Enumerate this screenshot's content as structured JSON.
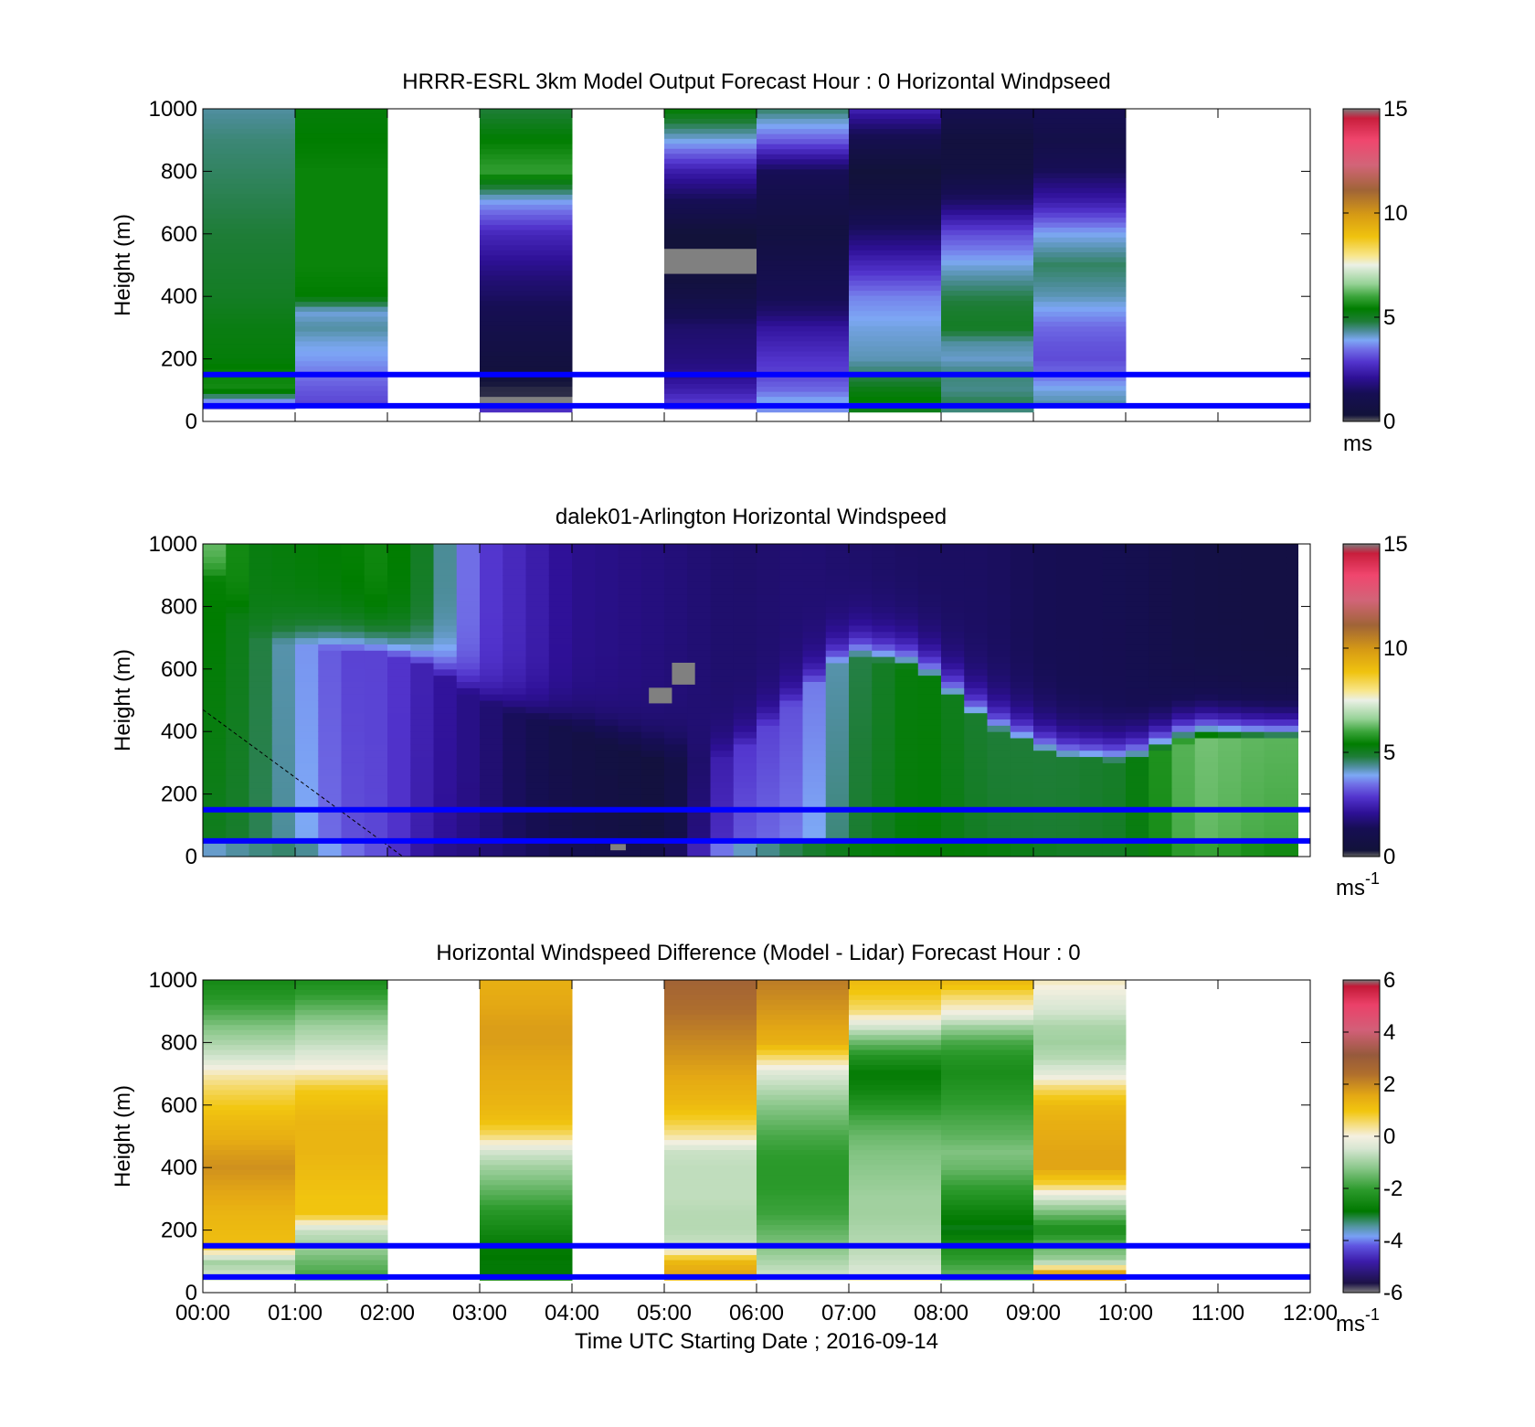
{
  "figure": {
    "xlabel": "Time UTC  Starting Date ; 2016-09-14",
    "x_tick_labels": [
      "00:00",
      "01:00",
      "02:00",
      "03:00",
      "04:00",
      "05:00",
      "06:00",
      "07:00",
      "08:00",
      "09:00",
      "10:00",
      "11:00",
      "12:00"
    ]
  },
  "chart_data": [
    {
      "type": "heatmap",
      "title": "HRRR-ESRL 3km Model Output   Forecast Hour : 0 Horizontal Windpseed",
      "ylabel": "Height (m)",
      "xlim": [
        "00:00",
        "12:00"
      ],
      "ylim": [
        0,
        1000
      ],
      "y_ticks": [
        0,
        200,
        400,
        600,
        800,
        1000
      ],
      "colorbar": {
        "min": 0,
        "max": 15,
        "ticks": [
          0,
          5,
          10,
          15
        ],
        "unit_label": "ms",
        "unit_sup": "",
        "colormap": "speed"
      },
      "reference_lines_m": [
        50,
        150
      ],
      "reference_line_color": "#0000ff",
      "columns": [
        {
          "start": "00:00",
          "end": "01:00",
          "heights": [
            1000,
            900,
            800,
            700,
            600,
            500,
            400,
            300,
            200,
            150,
            100,
            60,
            40
          ],
          "values": [
            4.3,
            4.5,
            4.6,
            4.7,
            4.8,
            4.9,
            5.0,
            5.2,
            5.3,
            5.5,
            5.6,
            3.5,
            3.0
          ]
        },
        {
          "start": "01:00",
          "end": "02:00",
          "heights": [
            1000,
            900,
            800,
            700,
            600,
            500,
            400,
            350,
            300,
            250,
            200,
            150,
            100,
            50
          ],
          "values": [
            5.3,
            5.4,
            5.5,
            5.5,
            5.5,
            5.5,
            5.4,
            4.0,
            4.3,
            4.0,
            3.8,
            3.5,
            3.2,
            3.0
          ]
        },
        {
          "start": "02:00",
          "end": "03:00",
          "heights": [],
          "values": []
        },
        {
          "start": "03:00",
          "end": "04:00",
          "heights": [
            1000,
            900,
            800,
            700,
            600,
            500,
            450,
            400,
            300,
            250,
            200,
            150,
            100,
            60,
            30
          ],
          "values": [
            4.8,
            5.4,
            5.9,
            3.8,
            2.6,
            2.0,
            1.7,
            1.5,
            1.0,
            0.8,
            0.6,
            0.4,
            0.2,
            -1,
            2.7
          ]
        },
        {
          "start": "04:00",
          "end": "05:00",
          "heights": [],
          "values": []
        },
        {
          "start": "05:00",
          "end": "06:00",
          "heights": [
            1000,
            900,
            800,
            700,
            600,
            500,
            450,
            400,
            350,
            300,
            200,
            150,
            100,
            70,
            40
          ],
          "values": [
            5.4,
            4.0,
            2.4,
            1.3,
            0.3,
            -1,
            0.5,
            0.8,
            1.2,
            1.6,
            1.8,
            2.0,
            2.4,
            2.8,
            3.1
          ]
        },
        {
          "start": "06:00",
          "end": "07:00",
          "heights": [
            1000,
            900,
            800,
            700,
            600,
            500,
            400,
            350,
            300,
            250,
            200,
            150,
            100,
            60,
            30
          ],
          "values": [
            4.6,
            3.3,
            1.4,
            0.9,
            0.6,
            1.0,
            1.3,
            1.6,
            2.2,
            2.5,
            2.8,
            3.0,
            3.4,
            4.0,
            3.6
          ]
        },
        {
          "start": "07:00",
          "end": "08:00",
          "heights": [
            1000,
            900,
            800,
            700,
            600,
            500,
            450,
            400,
            300,
            250,
            200,
            150,
            100,
            50,
            30
          ],
          "values": [
            2.5,
            1.1,
            0.3,
            0.7,
            1.6,
            2.6,
            3.1,
            3.6,
            4.0,
            4.1,
            4.2,
            4.6,
            5.2,
            5.5,
            4.9
          ]
        },
        {
          "start": "08:00",
          "end": "09:00",
          "heights": [
            1000,
            900,
            800,
            700,
            600,
            500,
            400,
            350,
            300,
            250,
            200,
            150,
            100,
            60,
            30
          ],
          "values": [
            1.2,
            0.5,
            0.6,
            1.6,
            3.1,
            4.0,
            4.7,
            4.9,
            5.0,
            4.3,
            4.1,
            4.5,
            4.4,
            4.7,
            4.4
          ]
        },
        {
          "start": "09:00",
          "end": "10:00",
          "heights": [
            1000,
            900,
            800,
            700,
            600,
            500,
            400,
            350,
            300,
            250,
            200,
            150,
            100,
            50
          ],
          "values": [
            1.3,
            0.9,
            1.4,
            2.4,
            3.9,
            4.6,
            4.2,
            3.8,
            3.4,
            3.2,
            3.1,
            3.4,
            4.0,
            4.3
          ]
        },
        {
          "start": "10:00",
          "end": "11:00",
          "heights": [],
          "values": []
        },
        {
          "start": "11:00",
          "end": "12:00",
          "heights": [],
          "values": []
        }
      ]
    },
    {
      "type": "heatmap",
      "title": "dalek01-Arlington  Horizontal Windspeed",
      "ylabel": "Height (m)",
      "xlim": [
        "00:00",
        "12:00"
      ],
      "ylim": [
        0,
        1000
      ],
      "y_ticks": [
        0,
        200,
        400,
        600,
        800,
        1000
      ],
      "colorbar": {
        "min": 0,
        "max": 15,
        "ticks": [
          0,
          5,
          10,
          15
        ],
        "unit_label": "ms",
        "unit_sup": "-1",
        "colormap": "speed"
      },
      "reference_lines_m": [
        50,
        150
      ],
      "reference_line_color": "#0000ff",
      "column_width_hours": 0.25,
      "data_end": "11:52",
      "profiles": [
        {
          "t": 0.0,
          "mid": 5.6,
          "top": 6.8,
          "bottom": 4.0,
          "layer_top": 950
        },
        {
          "t": 0.5,
          "mid": 5.0,
          "top": 5.2,
          "bottom": 4.4,
          "layer_top": 700
        },
        {
          "t": 1.0,
          "mid": 4.0,
          "top": 5.3,
          "bottom": 4.6,
          "layer_top": 680
        },
        {
          "t": 1.5,
          "mid": 3.0,
          "top": 5.4,
          "bottom": 3.6,
          "layer_top": 660
        },
        {
          "t": 2.0,
          "mid": 3.0,
          "top": 5.6,
          "bottom": 3.0,
          "layer_top": 650
        },
        {
          "t": 2.5,
          "mid": 2.3,
          "top": 4.8,
          "bottom": 2.0,
          "layer_top": 600
        },
        {
          "t": 3.0,
          "mid": 1.8,
          "top": 3.0,
          "bottom": 1.8,
          "layer_top": 500
        },
        {
          "t": 4.0,
          "mid": 0.8,
          "top": 2.0,
          "bottom": 1.2,
          "layer_top": 400
        },
        {
          "t": 5.0,
          "mid": 0.4,
          "top": 1.8,
          "bottom": 1.0,
          "layer_top": 300
        },
        {
          "t": 5.75,
          "mid": 2.8,
          "top": 1.6,
          "bottom": 4.0,
          "layer_top": 320
        },
        {
          "t": 6.5,
          "mid": 3.2,
          "top": 1.7,
          "bottom": 4.8,
          "layer_top": 520
        },
        {
          "t": 7.0,
          "mid": 4.6,
          "top": 1.6,
          "bottom": 5.2,
          "layer_top": 650
        },
        {
          "t": 7.75,
          "mid": 5.4,
          "top": 1.5,
          "bottom": 5.4,
          "layer_top": 600
        },
        {
          "t": 8.5,
          "mid": 4.8,
          "top": 1.5,
          "bottom": 5.3,
          "layer_top": 420
        },
        {
          "t": 9.25,
          "mid": 4.8,
          "top": 1.3,
          "bottom": 5.0,
          "layer_top": 320
        },
        {
          "t": 10.0,
          "mid": 5.0,
          "top": 1.2,
          "bottom": 5.0,
          "layer_top": 300
        },
        {
          "t": 10.75,
          "mid": 6.4,
          "top": 0.8,
          "bottom": 6.0,
          "layer_top": 380
        },
        {
          "t": 11.5,
          "mid": 6.2,
          "top": 0.7,
          "bottom": 5.6,
          "layer_top": 370
        }
      ],
      "missing_patches": [
        {
          "start": "05:05",
          "end": "05:20",
          "bottom": 550,
          "top": 620
        },
        {
          "start": "04:50",
          "end": "05:05",
          "bottom": 490,
          "top": 540
        },
        {
          "start": "04:25",
          "end": "04:35",
          "bottom": 20,
          "top": 40
        }
      ],
      "dashed_line": [
        {
          "t": "00:00",
          "h": 470
        },
        {
          "t": "02:10",
          "h": 0
        }
      ]
    },
    {
      "type": "heatmap",
      "title": "Horizontal Windspeed Difference (Model - Lidar) Forecast Hour : 0",
      "ylabel": "Height (m)",
      "xlabel": "Time UTC  Starting Date ; 2016-09-14",
      "xlim": [
        "00:00",
        "12:00"
      ],
      "ylim": [
        0,
        1000
      ],
      "y_ticks": [
        0,
        200,
        400,
        600,
        800,
        1000
      ],
      "colorbar": {
        "min": -6,
        "max": 6,
        "ticks": [
          -6,
          -4,
          -2,
          0,
          2,
          4,
          6
        ],
        "unit_label": "ms",
        "unit_sup": "-1",
        "colormap": "difference"
      },
      "reference_lines_m": [
        50,
        150
      ],
      "reference_line_color": "#0000ff",
      "columns": [
        {
          "start": "00:00",
          "end": "01:00",
          "heights": [
            1000,
            950,
            900,
            850,
            800,
            750,
            700,
            650,
            600,
            550,
            500,
            450,
            400,
            350,
            300,
            250,
            200,
            150,
            100,
            60,
            40
          ],
          "values": [
            -2.5,
            -2.2,
            -1.8,
            -1.3,
            -0.9,
            -0.5,
            0.2,
            0.6,
            0.9,
            1.2,
            1.4,
            1.7,
            1.9,
            1.7,
            1.5,
            1.3,
            1.2,
            1.1,
            -1.0,
            -0.6,
            -0.4
          ]
        },
        {
          "start": "01:00",
          "end": "02:00",
          "heights": [
            1000,
            950,
            900,
            850,
            800,
            750,
            700,
            650,
            600,
            550,
            500,
            450,
            400,
            350,
            300,
            250,
            200,
            150,
            100,
            60,
            40
          ],
          "values": [
            -2.4,
            -2.0,
            -1.5,
            -1.0,
            -0.7,
            -0.3,
            0.2,
            0.9,
            1.1,
            1.3,
            1.3,
            1.3,
            1.2,
            1.1,
            1.0,
            1.0,
            -0.6,
            -1.0,
            -1.5,
            -1.8,
            -1.2
          ]
        },
        {
          "start": "02:00",
          "end": "03:00",
          "heights": [],
          "values": []
        },
        {
          "start": "03:00",
          "end": "04:00",
          "heights": [
            1000,
            950,
            900,
            850,
            800,
            750,
            700,
            650,
            600,
            550,
            500,
            450,
            400,
            350,
            300,
            250,
            200,
            150,
            100,
            60,
            40
          ],
          "values": [
            1.4,
            1.5,
            1.6,
            1.7,
            1.7,
            1.6,
            1.5,
            1.4,
            1.3,
            1.1,
            0.5,
            -0.5,
            -1.0,
            -1.4,
            -1.8,
            -2.2,
            -2.5,
            -2.8,
            -2.9,
            -2.9,
            -2.7
          ]
        },
        {
          "start": "04:00",
          "end": "05:00",
          "heights": [],
          "values": []
        },
        {
          "start": "05:00",
          "end": "06:00",
          "heights": [
            1000,
            950,
            900,
            850,
            800,
            750,
            700,
            650,
            600,
            550,
            500,
            450,
            400,
            350,
            300,
            250,
            200,
            150,
            100,
            60,
            40
          ],
          "values": [
            2.8,
            2.6,
            2.4,
            2.2,
            2.0,
            1.8,
            1.6,
            1.4,
            1.2,
            0.8,
            0.3,
            -0.6,
            -0.7,
            -0.7,
            -0.7,
            -0.8,
            -0.8,
            -0.6,
            1.2,
            1.6,
            1.0
          ]
        },
        {
          "start": "06:00",
          "end": "07:00",
          "heights": [
            1000,
            950,
            900,
            850,
            800,
            750,
            700,
            650,
            600,
            550,
            500,
            450,
            400,
            350,
            300,
            250,
            200,
            150,
            100,
            60,
            40
          ],
          "values": [
            2.2,
            2.0,
            1.8,
            1.6,
            1.4,
            0.5,
            -0.4,
            -0.8,
            -1.2,
            -1.5,
            -1.8,
            -2.0,
            -2.1,
            -2.1,
            -2.0,
            -1.9,
            -1.6,
            -1.3,
            -0.9,
            -0.6,
            -0.3
          ]
        },
        {
          "start": "07:00",
          "end": "08:00",
          "heights": [
            1000,
            950,
            900,
            850,
            800,
            750,
            700,
            650,
            600,
            550,
            500,
            450,
            400,
            350,
            300,
            250,
            200,
            150,
            100,
            60,
            40
          ],
          "values": [
            1.2,
            0.9,
            0.5,
            -0.5,
            -1.5,
            -2.3,
            -2.8,
            -2.6,
            -2.2,
            -1.8,
            -1.5,
            -1.3,
            -1.2,
            -1.1,
            -1.0,
            -1.0,
            -0.9,
            -0.8,
            -0.6,
            -0.4,
            0.6
          ]
        },
        {
          "start": "08:00",
          "end": "09:00",
          "heights": [
            1000,
            950,
            900,
            850,
            800,
            750,
            700,
            650,
            600,
            550,
            500,
            450,
            400,
            350,
            300,
            250,
            200,
            150,
            100,
            60,
            40
          ],
          "values": [
            1.3,
            0.6,
            0.0,
            -1.0,
            -1.8,
            -2.2,
            -2.4,
            -2.2,
            -2.0,
            -1.8,
            -1.6,
            -1.3,
            -1.5,
            -1.9,
            -2.3,
            -2.7,
            -3.0,
            -2.4,
            -2.0,
            -1.6,
            -1.2
          ]
        },
        {
          "start": "09:00",
          "end": "10:00",
          "heights": [
            1000,
            950,
            900,
            850,
            800,
            750,
            700,
            650,
            600,
            550,
            500,
            450,
            400,
            350,
            300,
            250,
            200,
            150,
            100,
            60,
            40
          ],
          "values": [
            0.2,
            -0.2,
            -0.5,
            -0.9,
            -1.0,
            -0.8,
            -0.3,
            0.6,
            1.2,
            1.4,
            1.5,
            1.6,
            1.6,
            0.8,
            -0.5,
            -1.5,
            -2.4,
            -1.6,
            -1.0,
            1.8,
            1.5
          ]
        },
        {
          "start": "10:00",
          "end": "11:00",
          "heights": [],
          "values": []
        },
        {
          "start": "11:00",
          "end": "12:00",
          "heights": [],
          "values": []
        }
      ]
    }
  ]
}
